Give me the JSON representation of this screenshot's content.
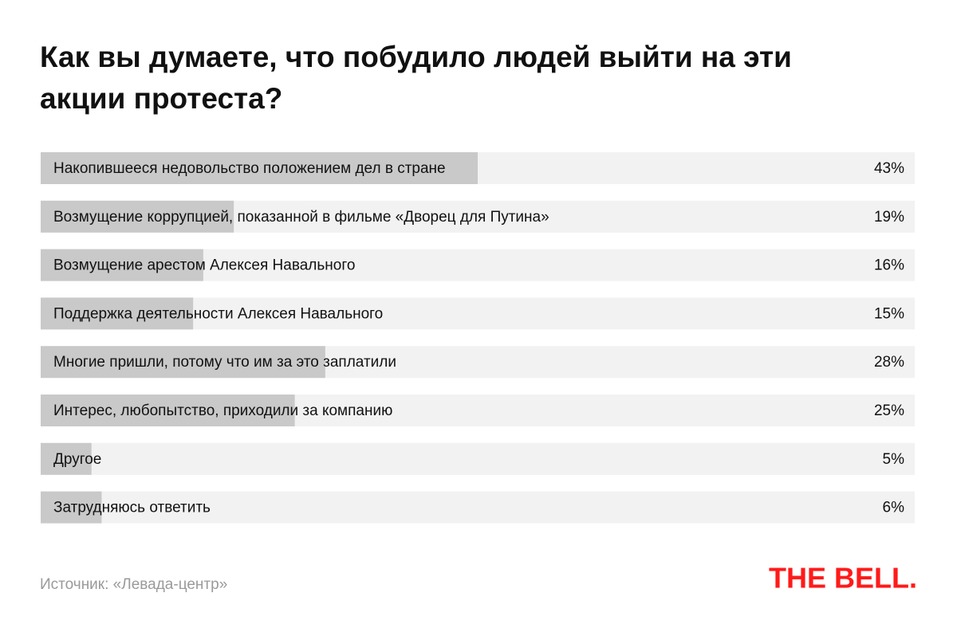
{
  "chart_data": {
    "type": "bar",
    "title": "Как вы думаете, что побудило людей выйти на эти акции протеста?",
    "categories": [
      "Накопившееся недовольство положением дел в стране",
      "Возмущение коррупцией, показанной  в фильме «Дворец для Путина»",
      "Возмущение арестом Алексея Навального",
      "Поддержка деятельности Алексея Навального",
      "Многие пришли, потому что им за это заплатили",
      "Интерес, любопытство, приходили за компанию",
      "Другое",
      "Затрудняюсь ответить"
    ],
    "values": [
      43,
      19,
      16,
      15,
      28,
      25,
      5,
      6
    ],
    "value_labels": [
      "43%",
      "19%",
      "16%",
      "15%",
      "28%",
      "25%",
      "5%",
      "6%"
    ],
    "color": "#c9c9c9",
    "track_color": "#f2f2f2",
    "xlim": [
      0,
      86
    ],
    "source": "Источник: «Левада-центр»",
    "logo": "THE BELL."
  }
}
